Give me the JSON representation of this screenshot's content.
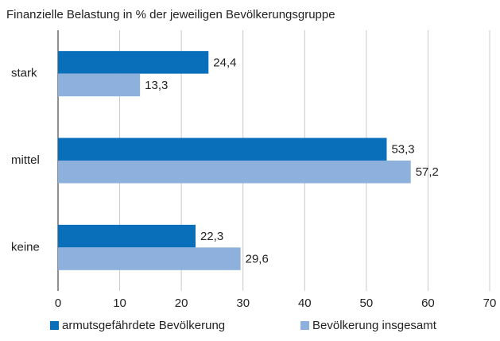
{
  "chart_data": {
    "type": "barh",
    "title": "Finanzielle Belastung in % der jeweiligen Bevölkerungsgruppe",
    "categories": [
      "stark",
      "mittel",
      "keine"
    ],
    "series": [
      {
        "name": "armutsgefährdete Bevölkerung",
        "color": "#0a6fba",
        "values": [
          24.4,
          53.3,
          22.3
        ],
        "value_labels": [
          "24,4",
          "53,3",
          "22,3"
        ]
      },
      {
        "name": "Bevölkerung insgesamt",
        "color": "#8db0dc",
        "values": [
          13.3,
          57.2,
          29.6
        ],
        "value_labels": [
          "13,3",
          "57,2",
          "29,6"
        ]
      }
    ],
    "xlim": [
      0,
      70
    ],
    "xticks": [
      0,
      10,
      20,
      30,
      40,
      50,
      60,
      70
    ],
    "grid": true,
    "legend": "bottom"
  }
}
